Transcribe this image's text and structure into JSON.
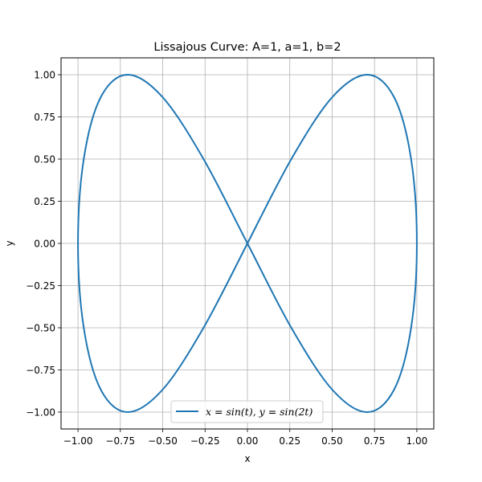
{
  "chart_data": {
    "type": "line",
    "title": "Lissajous Curve: A=1, a=1, b=2",
    "xlabel": "x",
    "ylabel": "y",
    "xlim": [
      -1.1,
      1.1
    ],
    "ylim": [
      -1.1,
      1.1
    ],
    "xticks": [
      -1.0,
      -0.75,
      -0.5,
      -0.25,
      0.0,
      0.25,
      0.5,
      0.75,
      1.0
    ],
    "yticks": [
      -1.0,
      -0.75,
      -0.5,
      -0.25,
      0.0,
      0.25,
      0.5,
      0.75,
      1.0
    ],
    "xtick_labels": [
      "−1.00",
      "−0.75",
      "−0.50",
      "−0.25",
      "0.00",
      "0.25",
      "0.50",
      "0.75",
      "1.00"
    ],
    "ytick_labels": [
      "−1.00",
      "−0.75",
      "−0.50",
      "−0.25",
      "0.00",
      "0.25",
      "0.50",
      "0.75",
      "1.00"
    ],
    "grid": true,
    "legend_position": "bottom-center",
    "series": [
      {
        "name": "x = sin(t), y = sin(2t)",
        "color": "#1f77b4",
        "x": [
          0.0,
          0.259,
          0.5,
          0.707,
          0.866,
          0.966,
          1.0,
          0.966,
          0.866,
          0.707,
          0.5,
          0.259,
          0.0,
          -0.259,
          -0.5,
          -0.707,
          -0.866,
          -0.966,
          -1.0,
          -0.966,
          -0.866,
          -0.707,
          -0.5,
          -0.259,
          0.0
        ],
        "y": [
          0.0,
          0.5,
          0.866,
          1.0,
          0.866,
          0.5,
          0.0,
          -0.5,
          -0.866,
          -1.0,
          -0.866,
          -0.5,
          0.0,
          0.5,
          0.866,
          1.0,
          0.866,
          0.5,
          0.0,
          -0.5,
          -0.866,
          -1.0,
          -0.866,
          -0.5,
          0.0
        ]
      }
    ]
  }
}
